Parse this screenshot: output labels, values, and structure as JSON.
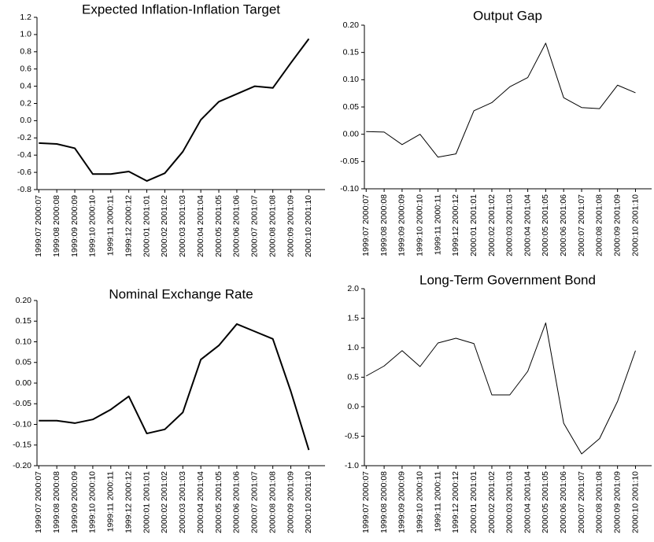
{
  "chart_data": [
    {
      "type": "line",
      "title": "Expected Inflation-Inflation Target",
      "categories": [
        "1999:07 2000:07",
        "1999:08 2000:08",
        "1999:09 2000:09",
        "1999:10 2000:10",
        "1999:11 2000:11",
        "1999:12 2000:12",
        "2000:01 2001:01",
        "2000:02 2001:02",
        "2000:03 2001:03",
        "2000:04 2001:04",
        "2000:05 2001:05",
        "2000:06 2001:06",
        "2000:07 2001:07",
        "2000:08 2001:08",
        "2000:09 2001:09",
        "2000:10 2001:10"
      ],
      "values": [
        -0.26,
        -0.27,
        -0.32,
        -0.62,
        -0.62,
        -0.59,
        -0.7,
        -0.61,
        -0.36,
        0.01,
        0.22,
        0.31,
        0.4,
        0.38,
        0.67,
        0.95
      ],
      "color": "#000000",
      "ylim": [
        -0.8,
        1.2
      ],
      "yticks": [
        -0.8,
        -0.6,
        -0.4,
        -0.2,
        {
          "value": 0,
          "label": "0.0"
        },
        0.2,
        0.4,
        0.6,
        0.8,
        {
          "value": 1,
          "label": "1.0"
        },
        1.2
      ]
    },
    {
      "type": "line",
      "title": "Output Gap",
      "categories": [
        "1999:07 2000:07",
        "1999:08 2000:08",
        "1999:09 2000:09",
        "1999:10 2000:10",
        "1999:11 2000:11",
        "1999:12 2000:12",
        "2000:01 2001:01",
        "2000:02 2001:02",
        "2000:03 2001:03",
        "2000:04 2001:04",
        "2000:05 2001:05",
        "2000:06 2001:06",
        "2000:07 2001:07",
        "2000:08 2001:08",
        "2000:09 2001:09",
        "2000:10 2001:10"
      ],
      "values": [
        0.005,
        0.004,
        -0.019,
        0.0,
        -0.042,
        -0.036,
        0.043,
        0.058,
        0.087,
        0.104,
        0.167,
        0.067,
        0.049,
        0.047,
        0.09,
        0.076
      ],
      "color": "#000000",
      "ylim": [
        -0.1,
        0.2
      ],
      "yticks": [
        {
          "value": -0.1,
          "label": "-0.10"
        },
        -0.05,
        {
          "value": 0,
          "label": "0.00"
        },
        0.05,
        {
          "value": 0.1,
          "label": "0.10"
        },
        0.15,
        {
          "value": 0.2,
          "label": "0.20"
        }
      ]
    },
    {
      "type": "line",
      "title": "Nominal Exchange Rate",
      "categories": [
        "1999:07 2000:07",
        "1999:08 2000:08",
        "1999:09 2000:09",
        "1999:10 2000:10",
        "1999:11 2000:11",
        "1999:12 2000:12",
        "2000:01 2001:01",
        "2000:02 2001:02",
        "2000:03 2001:03",
        "2000:04 2001:04",
        "2000:05 2001:05",
        "2000:06 2001:06",
        "2000:07 2001:07",
        "2000:08 2001:08",
        "2000:09 2001:09",
        "2000:10 2001:10"
      ],
      "values": [
        -0.091,
        -0.091,
        -0.097,
        -0.088,
        -0.064,
        -0.032,
        -0.122,
        -0.112,
        -0.071,
        0.057,
        0.091,
        0.143,
        0.125,
        0.107,
        -0.02,
        -0.162
      ],
      "color": "#000000",
      "ylim": [
        -0.2,
        0.2
      ],
      "yticks": [
        {
          "value": -0.2,
          "label": "-0.20"
        },
        -0.15,
        {
          "value": -0.1,
          "label": "-0.10"
        },
        -0.05,
        {
          "value": 0,
          "label": "0.00"
        },
        0.05,
        {
          "value": 0.1,
          "label": "0.10"
        },
        0.15,
        {
          "value": 0.2,
          "label": "0.20"
        }
      ]
    },
    {
      "type": "line",
      "title": "Long-Term Government Bond",
      "categories": [
        "1999:07 2000:07",
        "1999:08 2000:08",
        "1999:09 2000:09",
        "1999:10 2000:10",
        "1999:11 2000:11",
        "1999:12 2000:12",
        "2000:01 2001:01",
        "2000:02 2001:02",
        "2000:03 2001:03",
        "2000:04 2001:04",
        "2000:05 2001:05",
        "2000:06 2001:06",
        "2000:07 2001:07",
        "2000:08 2001:08",
        "2000:09 2001:09",
        "2000:10 2001:10"
      ],
      "values": [
        0.52,
        0.69,
        0.95,
        0.68,
        1.08,
        1.16,
        1.07,
        0.2,
        0.2,
        0.6,
        1.42,
        -0.28,
        -0.8,
        -0.54,
        0.09,
        0.95
      ],
      "color": "#000000",
      "ylim": [
        -1,
        2
      ],
      "yticks": [
        {
          "value": -1,
          "label": "-1.0"
        },
        -0.5,
        {
          "value": 0,
          "label": "0.0"
        },
        0.5,
        {
          "value": 1,
          "label": "1.0"
        },
        1.5,
        {
          "value": 2,
          "label": "2.0"
        }
      ]
    }
  ]
}
